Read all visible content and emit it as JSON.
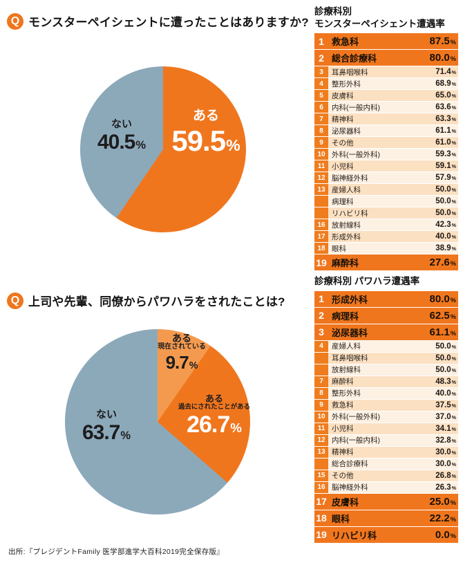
{
  "ui": {
    "q_mark": "Q",
    "percent": "%"
  },
  "source": "出所:『プレジデントFamily 医学部進学大百科2019完全保存版』",
  "chart_data": [
    {
      "type": "pie",
      "title": "モンスターペイシェントに遭ったことはありますか?",
      "legend_position": "inside",
      "slices": [
        {
          "label": "ある",
          "value": 59.5,
          "color": "#f0761e"
        },
        {
          "label": "ない",
          "value": 40.5,
          "color": "#8ca9ba"
        }
      ]
    },
    {
      "type": "table",
      "title": "診療科別 モンスターペイシェント遭遇率",
      "title_line1": "診療科別",
      "title_line2": "モンスターペイシェント遭遇率",
      "rows": [
        {
          "rank": "1",
          "name": "救急科",
          "value": "87.5",
          "highlight": true
        },
        {
          "rank": "2",
          "name": "総合診療科",
          "value": "80.0",
          "highlight": true
        },
        {
          "rank": "3",
          "name": "耳鼻咽喉科",
          "value": "71.4",
          "highlight": false
        },
        {
          "rank": "4",
          "name": "整形外科",
          "value": "68.9",
          "highlight": false
        },
        {
          "rank": "5",
          "name": "皮膚科",
          "value": "65.0",
          "highlight": false
        },
        {
          "rank": "6",
          "name": "内科(一般内科)",
          "value": "63.6",
          "highlight": false
        },
        {
          "rank": "7",
          "name": "精神科",
          "value": "63.3",
          "highlight": false
        },
        {
          "rank": "8",
          "name": "泌尿器科",
          "value": "61.1",
          "highlight": false
        },
        {
          "rank": "9",
          "name": "その他",
          "value": "61.0",
          "highlight": false
        },
        {
          "rank": "10",
          "name": "外科(一般外科)",
          "value": "59.3",
          "highlight": false
        },
        {
          "rank": "11",
          "name": "小児科",
          "value": "59.1",
          "highlight": false
        },
        {
          "rank": "12",
          "name": "脳神経外科",
          "value": "57.9",
          "highlight": false
        },
        {
          "rank": "13",
          "name": "産婦人科",
          "value": "50.0",
          "highlight": false
        },
        {
          "rank": "",
          "name": "病理科",
          "value": "50.0",
          "highlight": false
        },
        {
          "rank": "",
          "name": "リハビリ科",
          "value": "50.0",
          "highlight": false
        },
        {
          "rank": "16",
          "name": "放射線科",
          "value": "42.3",
          "highlight": false
        },
        {
          "rank": "17",
          "name": "形成外科",
          "value": "40.0",
          "highlight": false
        },
        {
          "rank": "18",
          "name": "眼科",
          "value": "38.9",
          "highlight": false
        },
        {
          "rank": "19",
          "name": "麻酔科",
          "value": "27.6",
          "highlight": true
        }
      ]
    },
    {
      "type": "pie",
      "title": "上司や先輩、同僚からパワハラをされたことは?",
      "legend_position": "inside",
      "slices": [
        {
          "label": "ある",
          "sublabel": "現在されている",
          "value": 9.7,
          "color": "#f49a4f"
        },
        {
          "label": "ある",
          "sublabel": "過去にされたことがある",
          "value": 26.7,
          "color": "#f0761e"
        },
        {
          "label": "ない",
          "sublabel": "",
          "value": 63.7,
          "color": "#8ca9ba"
        }
      ]
    },
    {
      "type": "table",
      "title": "診療科別 パワハラ遭遇率",
      "rows": [
        {
          "rank": "1",
          "name": "形成外科",
          "value": "80.0",
          "highlight": true
        },
        {
          "rank": "2",
          "name": "病理科",
          "value": "62.5",
          "highlight": true
        },
        {
          "rank": "3",
          "name": "泌尿器科",
          "value": "61.1",
          "highlight": true
        },
        {
          "rank": "4",
          "name": "産婦人科",
          "value": "50.0",
          "highlight": false
        },
        {
          "rank": "",
          "name": "耳鼻咽喉科",
          "value": "50.0",
          "highlight": false
        },
        {
          "rank": "",
          "name": "放射線科",
          "value": "50.0",
          "highlight": false
        },
        {
          "rank": "7",
          "name": "麻酔科",
          "value": "48.3",
          "highlight": false
        },
        {
          "rank": "8",
          "name": "整形外科",
          "value": "40.0",
          "highlight": false
        },
        {
          "rank": "9",
          "name": "救急科",
          "value": "37.5",
          "highlight": false
        },
        {
          "rank": "10",
          "name": "外科(一般外科)",
          "value": "37.0",
          "highlight": false
        },
        {
          "rank": "11",
          "name": "小児科",
          "value": "34.1",
          "highlight": false
        },
        {
          "rank": "12",
          "name": "内科(一般内科)",
          "value": "32.8",
          "highlight": false
        },
        {
          "rank": "13",
          "name": "精神科",
          "value": "30.0",
          "highlight": false
        },
        {
          "rank": "",
          "name": "総合診療科",
          "value": "30.0",
          "highlight": false
        },
        {
          "rank": "15",
          "name": "その他",
          "value": "26.8",
          "highlight": false
        },
        {
          "rank": "16",
          "name": "脳神経外科",
          "value": "26.3",
          "highlight": false
        },
        {
          "rank": "17",
          "name": "皮膚科",
          "value": "25.0",
          "highlight": true
        },
        {
          "rank": "18",
          "name": "眼科",
          "value": "22.2",
          "highlight": true
        },
        {
          "rank": "19",
          "name": "リハビリ科",
          "value": "0.0",
          "highlight": true
        }
      ]
    }
  ]
}
